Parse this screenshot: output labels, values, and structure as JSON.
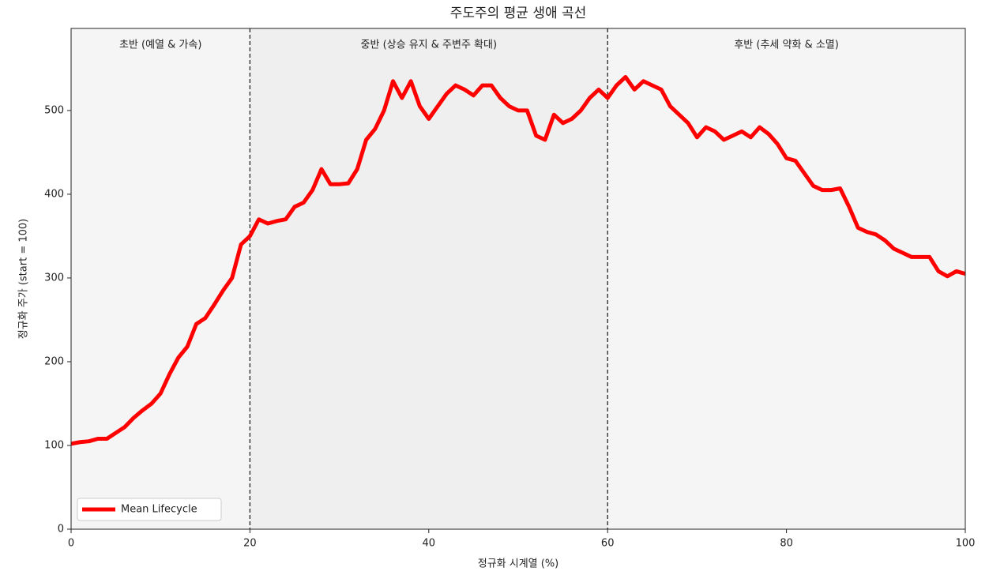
{
  "chart_data": {
    "type": "line",
    "title": "주도주의 평균 생애 곡선",
    "x_label": "정규화 시계열 (%)",
    "y_label": "정규화 주가 (start = 100)",
    "x": [
      0,
      1,
      2,
      3,
      4,
      5,
      6,
      7,
      8,
      9,
      10,
      11,
      12,
      13,
      14,
      15,
      16,
      17,
      18,
      19,
      20,
      21,
      22,
      23,
      24,
      25,
      26,
      27,
      28,
      29,
      30,
      31,
      32,
      33,
      34,
      35,
      36,
      37,
      38,
      39,
      40,
      41,
      42,
      43,
      44,
      45,
      46,
      47,
      48,
      49,
      50,
      51,
      52,
      53,
      54,
      55,
      56,
      57,
      58,
      59,
      60,
      61,
      62,
      63,
      64,
      65,
      66,
      67,
      68,
      69,
      70,
      71,
      72,
      73,
      74,
      75,
      76,
      77,
      78,
      79,
      80,
      81,
      82,
      83,
      84,
      85,
      86,
      87,
      88,
      89,
      90,
      91,
      92,
      93,
      94,
      95,
      96,
      97,
      98,
      99,
      100
    ],
    "series": [
      {
        "name": "Mean Lifecycle",
        "color": "#ff0000",
        "values": [
          102,
          104,
          105,
          108,
          108,
          115,
          122,
          133,
          142,
          150,
          162,
          185,
          205,
          218,
          245,
          252,
          268,
          285,
          300,
          340,
          350,
          370,
          365,
          368,
          370,
          385,
          390,
          405,
          430,
          412,
          412,
          413,
          430,
          465,
          478,
          500,
          535,
          515,
          535,
          505,
          490,
          505,
          520,
          530,
          525,
          518,
          530,
          530,
          515,
          505,
          500,
          500,
          470,
          465,
          495,
          485,
          490,
          500,
          515,
          525,
          515,
          530,
          540,
          525,
          535,
          530,
          525,
          505,
          495,
          485,
          468,
          480,
          475,
          465,
          470,
          475,
          468,
          480,
          472,
          460,
          443,
          440,
          425,
          410,
          405,
          405,
          407,
          385,
          360,
          355,
          352,
          345,
          335,
          330,
          325,
          325,
          325,
          308,
          302,
          308,
          305
        ]
      }
    ],
    "regions": [
      {
        "start": 0,
        "end": 20,
        "label": "초반 (예열 & 가속)",
        "color": "#f5f5f5"
      },
      {
        "start": 20,
        "end": 60,
        "label": "중반 (상승 유지 & 주변주 확대)",
        "color": "#efefef"
      },
      {
        "start": 60,
        "end": 100,
        "label": "후반 (추세 약화 & 소멸)",
        "color": "#f5f5f5"
      }
    ],
    "vlines": [
      20,
      60
    ],
    "xlim": [
      0,
      100
    ],
    "xticks": [
      0,
      20,
      40,
      60,
      80,
      100
    ],
    "ylim": [
      0,
      598
    ],
    "yticks": [
      0,
      100,
      200,
      300,
      400,
      500
    ],
    "grid": false,
    "legend": "lower left"
  }
}
